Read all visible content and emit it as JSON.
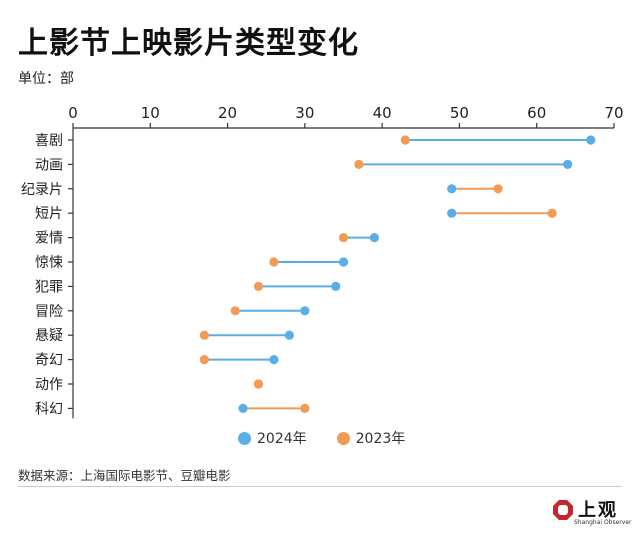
{
  "title": "上影节上映影片类型变化",
  "unit": "单位：部",
  "source": "数据来源：上海国际电影节、豆瓣电影",
  "logo": {
    "text": "上观",
    "sub": "Shanghai Observer"
  },
  "colors": {
    "s2024": "#5aaee8",
    "s2023": "#f39a55",
    "axis": "#333333"
  },
  "chart_data": {
    "type": "dumbbell",
    "x_ticks": [
      0,
      10,
      20,
      30,
      40,
      50,
      60,
      70
    ],
    "xlim": [
      0,
      70
    ],
    "categories": [
      "喜剧",
      "动画",
      "纪录片",
      "短片",
      "爱情",
      "惊悚",
      "犯罪",
      "冒险",
      "悬疑",
      "奇幻",
      "动作",
      "科幻"
    ],
    "series": [
      {
        "name": "2024年",
        "values": [
          67,
          64,
          49,
          49,
          39,
          35,
          34,
          30,
          28,
          26,
          24,
          22
        ]
      },
      {
        "name": "2023年",
        "values": [
          43,
          37,
          55,
          62,
          35,
          26,
          24,
          21,
          17,
          17,
          24,
          30
        ]
      }
    ],
    "legend": "bottom"
  }
}
